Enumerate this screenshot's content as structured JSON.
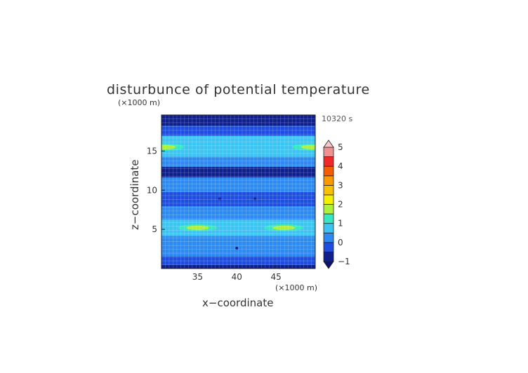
{
  "chart_data": {
    "type": "heatmap",
    "title": "disturbunce of potential temperature",
    "time_label": "10320 s",
    "xlabel": "x−coordinate",
    "ylabel": "z−coordinate",
    "x_unit": "(×1000 m)",
    "y_unit": "(×1000 m)",
    "xlim": [
      30.4,
      50.0
    ],
    "ylim": [
      0.0,
      19.6
    ],
    "x_ticks": [
      35,
      40,
      45
    ],
    "y_ticks": [
      5,
      10,
      15
    ],
    "grid": true,
    "colorbar": {
      "position": "right",
      "levels": [
        -1,
        -0.5,
        0,
        0.5,
        1,
        1.5,
        2,
        2.5,
        3,
        3.5,
        4,
        4.5,
        5
      ],
      "tick_labels": [
        "-1",
        "0",
        "1",
        "2",
        "3",
        "4",
        "5"
      ],
      "tick_values": [
        -1,
        0,
        1,
        2,
        3,
        4,
        5
      ],
      "colors": [
        "#0f1f8c",
        "#1e4de0",
        "#2d8af0",
        "#3cc4f2",
        "#38e6c0",
        "#aef03c",
        "#f4f000",
        "#f8c000",
        "#f89a00",
        "#f45c00",
        "#f02828",
        "#f09090"
      ],
      "under_color": "#0a1270",
      "over_color": "#f4c8c8"
    },
    "field_bands": [
      {
        "z": [
          0.0,
          0.5
        ],
        "value": -0.8
      },
      {
        "z": [
          0.5,
          1.6
        ],
        "value": -0.3
      },
      {
        "z": [
          1.6,
          3.0
        ],
        "value": 0.2
      },
      {
        "z": [
          3.0,
          4.2
        ],
        "value": 0.4
      },
      {
        "z": [
          4.2,
          6.3
        ],
        "value": 0.8
      },
      {
        "z": [
          6.3,
          8.0
        ],
        "value": 0.3
      },
      {
        "z": [
          8.0,
          9.8
        ],
        "value": -0.2
      },
      {
        "z": [
          9.8,
          11.7
        ],
        "value": 0.1
      },
      {
        "z": [
          11.7,
          13.0
        ],
        "value": -0.6
      },
      {
        "z": [
          13.0,
          14.3
        ],
        "value": 0.2
      },
      {
        "z": [
          14.3,
          17.0
        ],
        "value": 0.8
      },
      {
        "z": [
          17.0,
          18.3
        ],
        "value": -0.3
      },
      {
        "z": [
          18.3,
          19.6
        ],
        "value": -0.8
      }
    ],
    "local_maxima": [
      {
        "x": 35.0,
        "z": 5.2,
        "value": 1.6
      },
      {
        "x": 46.0,
        "z": 5.2,
        "value": 1.6
      },
      {
        "x": 30.8,
        "z": 15.5,
        "value": 1.6
      },
      {
        "x": 49.6,
        "z": 15.5,
        "value": 1.6
      }
    ],
    "local_minima": [
      {
        "x": 37.8,
        "z": 8.9,
        "value": -0.9
      },
      {
        "x": 42.3,
        "z": 8.9,
        "value": -0.9
      },
      {
        "x": 40.0,
        "z": 2.6,
        "value": -0.9
      }
    ]
  }
}
